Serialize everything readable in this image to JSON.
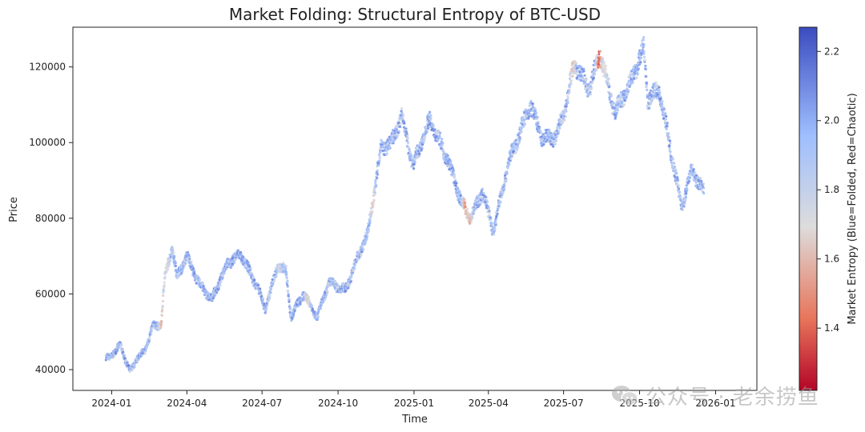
{
  "chart_data": {
    "type": "scatter",
    "title": "Market Folding: Structural Entropy of BTC-USD",
    "xlabel": "Time",
    "ylabel": "Price",
    "colorbar_label": "Market Entropy (Blue=Folded, Red=Chaotic)",
    "colormap": "coolwarm_r",
    "color_low": "#b2182b",
    "color_mid": "#dddddd",
    "color_high": "#3b4cc0",
    "colorbar_ticks": [
      "1.4",
      "1.6",
      "1.8",
      "2.0",
      "2.2"
    ],
    "colorbar_range": [
      1.22,
      2.27
    ],
    "xlim": [
      "2023-11-15",
      "2026-02-20"
    ],
    "ylim": [
      34500,
      130500
    ],
    "x_tick_labels": [
      "2024-01",
      "2024-04",
      "2024-07",
      "2024-10",
      "2025-01",
      "2025-04",
      "2025-07",
      "2025-10",
      "2026-01"
    ],
    "x_tick_dates": [
      "2024-01-01",
      "2024-04-01",
      "2024-07-01",
      "2024-10-01",
      "2025-01-01",
      "2025-04-01",
      "2025-07-01",
      "2025-10-01",
      "2026-01-01"
    ],
    "y_tick_labels": [
      "40000",
      "60000",
      "80000",
      "100000",
      "120000"
    ],
    "y_ticks": [
      40000,
      60000,
      80000,
      100000,
      120000
    ],
    "price_path": [
      [
        "2023-12-25",
        43000
      ],
      [
        "2024-01-05",
        44500
      ],
      [
        "2024-01-12",
        46800
      ],
      [
        "2024-01-18",
        42000
      ],
      [
        "2024-01-23",
        39500
      ],
      [
        "2024-02-01",
        43000
      ],
      [
        "2024-02-10",
        45000
      ],
      [
        "2024-02-20",
        51500
      ],
      [
        "2024-03-01",
        52000
      ],
      [
        "2024-03-05",
        64000
      ],
      [
        "2024-03-14",
        72500
      ],
      [
        "2024-03-20",
        64500
      ],
      [
        "2024-04-01",
        70000
      ],
      [
        "2024-04-15",
        63000
      ],
      [
        "2024-05-01",
        58500
      ],
      [
        "2024-05-20",
        68000
      ],
      [
        "2024-06-05",
        70500
      ],
      [
        "2024-06-25",
        62000
      ],
      [
        "2024-07-05",
        56000
      ],
      [
        "2024-07-20",
        67500
      ],
      [
        "2024-07-30",
        66000
      ],
      [
        "2024-08-05",
        54000
      ],
      [
        "2024-08-20",
        60000
      ],
      [
        "2024-09-06",
        54000
      ],
      [
        "2024-09-20",
        63000
      ],
      [
        "2024-10-10",
        61000
      ],
      [
        "2024-10-29",
        72000
      ],
      [
        "2024-11-06",
        76000
      ],
      [
        "2024-11-22",
        98500
      ],
      [
        "2024-12-05",
        100000
      ],
      [
        "2024-12-17",
        107000
      ],
      [
        "2024-12-31",
        94000
      ],
      [
        "2025-01-20",
        106000
      ],
      [
        "2025-02-10",
        96000
      ],
      [
        "2025-02-28",
        84000
      ],
      [
        "2025-03-10",
        80000
      ],
      [
        "2025-03-25",
        87000
      ],
      [
        "2025-04-07",
        76500
      ],
      [
        "2025-04-25",
        94500
      ],
      [
        "2025-05-22",
        110000
      ],
      [
        "2025-06-05",
        101000
      ],
      [
        "2025-06-22",
        101500
      ],
      [
        "2025-07-03",
        109000
      ],
      [
        "2025-07-14",
        121000
      ],
      [
        "2025-08-01",
        114000
      ],
      [
        "2025-08-14",
        123500
      ],
      [
        "2025-09-01",
        108000
      ],
      [
        "2025-09-20",
        116000
      ],
      [
        "2025-10-06",
        125000
      ],
      [
        "2025-10-11",
        111500
      ],
      [
        "2025-10-25",
        114000
      ],
      [
        "2025-11-05",
        101000
      ],
      [
        "2025-11-21",
        83000
      ],
      [
        "2025-12-03",
        93000
      ],
      [
        "2025-12-10",
        90000
      ],
      [
        "2025-12-18",
        87000
      ]
    ],
    "entropy_highlights": [
      [
        "2024-03-01",
        1.55
      ],
      [
        "2024-03-08",
        1.65
      ],
      [
        "2024-07-22",
        1.7
      ],
      [
        "2024-08-25",
        1.6
      ],
      [
        "2024-11-12",
        1.6
      ],
      [
        "2025-03-04",
        1.45
      ],
      [
        "2025-03-10",
        1.5
      ],
      [
        "2025-07-12",
        1.55
      ],
      [
        "2025-08-13",
        1.25
      ],
      [
        "2025-08-20",
        1.65
      ]
    ],
    "grid": false,
    "legend": "none"
  },
  "watermark": {
    "icon": "wechat-icon",
    "text": "公众号 · 老余捞鱼"
  }
}
